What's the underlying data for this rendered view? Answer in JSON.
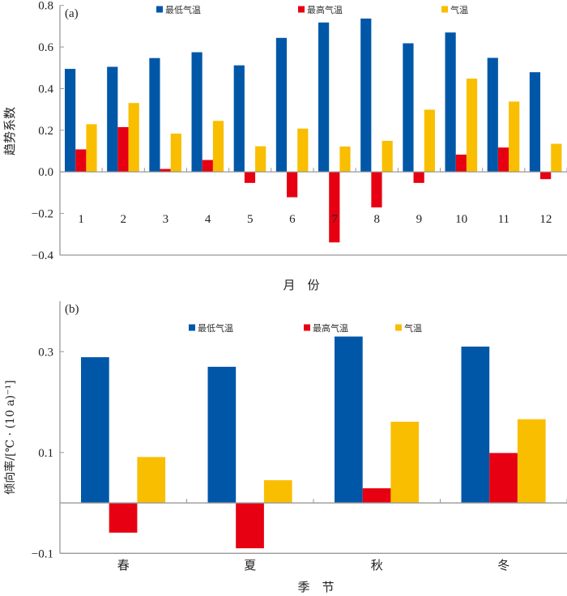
{
  "colors": {
    "min_temp": "#0057a8",
    "max_temp": "#e60012",
    "temp": "#f9be00",
    "axis": "#999999"
  },
  "chart_data": [
    {
      "type": "bar",
      "panel_label": "(a)",
      "title": "",
      "xlabel": "月　份",
      "ylabel": "趋势系数",
      "ylim": [
        -0.4,
        0.8
      ],
      "yticks": [
        -0.4,
        -0.2,
        0.0,
        0.2,
        0.4,
        0.6,
        0.8
      ],
      "ytick_labels": [
        "−0.4",
        "−0.2",
        "0.0",
        "0.2",
        "0.4",
        "0.6",
        "0.8"
      ],
      "categories": [
        "1",
        "2",
        "3",
        "4",
        "5",
        "6",
        "7",
        "8",
        "9",
        "10",
        "11",
        "12"
      ],
      "legend_position": "top",
      "series": [
        {
          "name": "最低气温",
          "color_key": "min_temp",
          "values": [
            0.495,
            0.505,
            0.547,
            0.575,
            0.512,
            0.644,
            0.718,
            0.737,
            0.618,
            0.67,
            0.548,
            0.479
          ]
        },
        {
          "name": "最高气温",
          "color_key": "max_temp",
          "values": [
            0.108,
            0.215,
            0.014,
            0.057,
            -0.053,
            -0.122,
            -0.339,
            -0.171,
            -0.053,
            0.083,
            0.117,
            -0.035
          ]
        },
        {
          "name": "气温",
          "color_key": "temp",
          "values": [
            0.229,
            0.331,
            0.184,
            0.245,
            0.123,
            0.208,
            0.122,
            0.149,
            0.299,
            0.448,
            0.338,
            0.135
          ]
        }
      ]
    },
    {
      "type": "bar",
      "panel_label": "(b)",
      "title": "",
      "xlabel": "季　节",
      "ylabel": "倾向率/[℃ · (10 a)⁻¹]",
      "ylim": [
        -0.1,
        0.4
      ],
      "yticks": [
        -0.1,
        0.1,
        0.3
      ],
      "ytick_labels": [
        "−0.1",
        "0.1",
        "0.3"
      ],
      "categories": [
        "春",
        "夏",
        "秋",
        "冬"
      ],
      "legend_position": "top",
      "series": [
        {
          "name": "最低气温",
          "color_key": "min_temp",
          "values": [
            0.289,
            0.27,
            0.33,
            0.31
          ]
        },
        {
          "name": "最高气温",
          "color_key": "max_temp",
          "values": [
            -0.059,
            -0.09,
            0.029,
            0.099
          ]
        },
        {
          "name": "气温",
          "color_key": "temp",
          "values": [
            0.091,
            0.045,
            0.161,
            0.166
          ]
        }
      ]
    }
  ]
}
